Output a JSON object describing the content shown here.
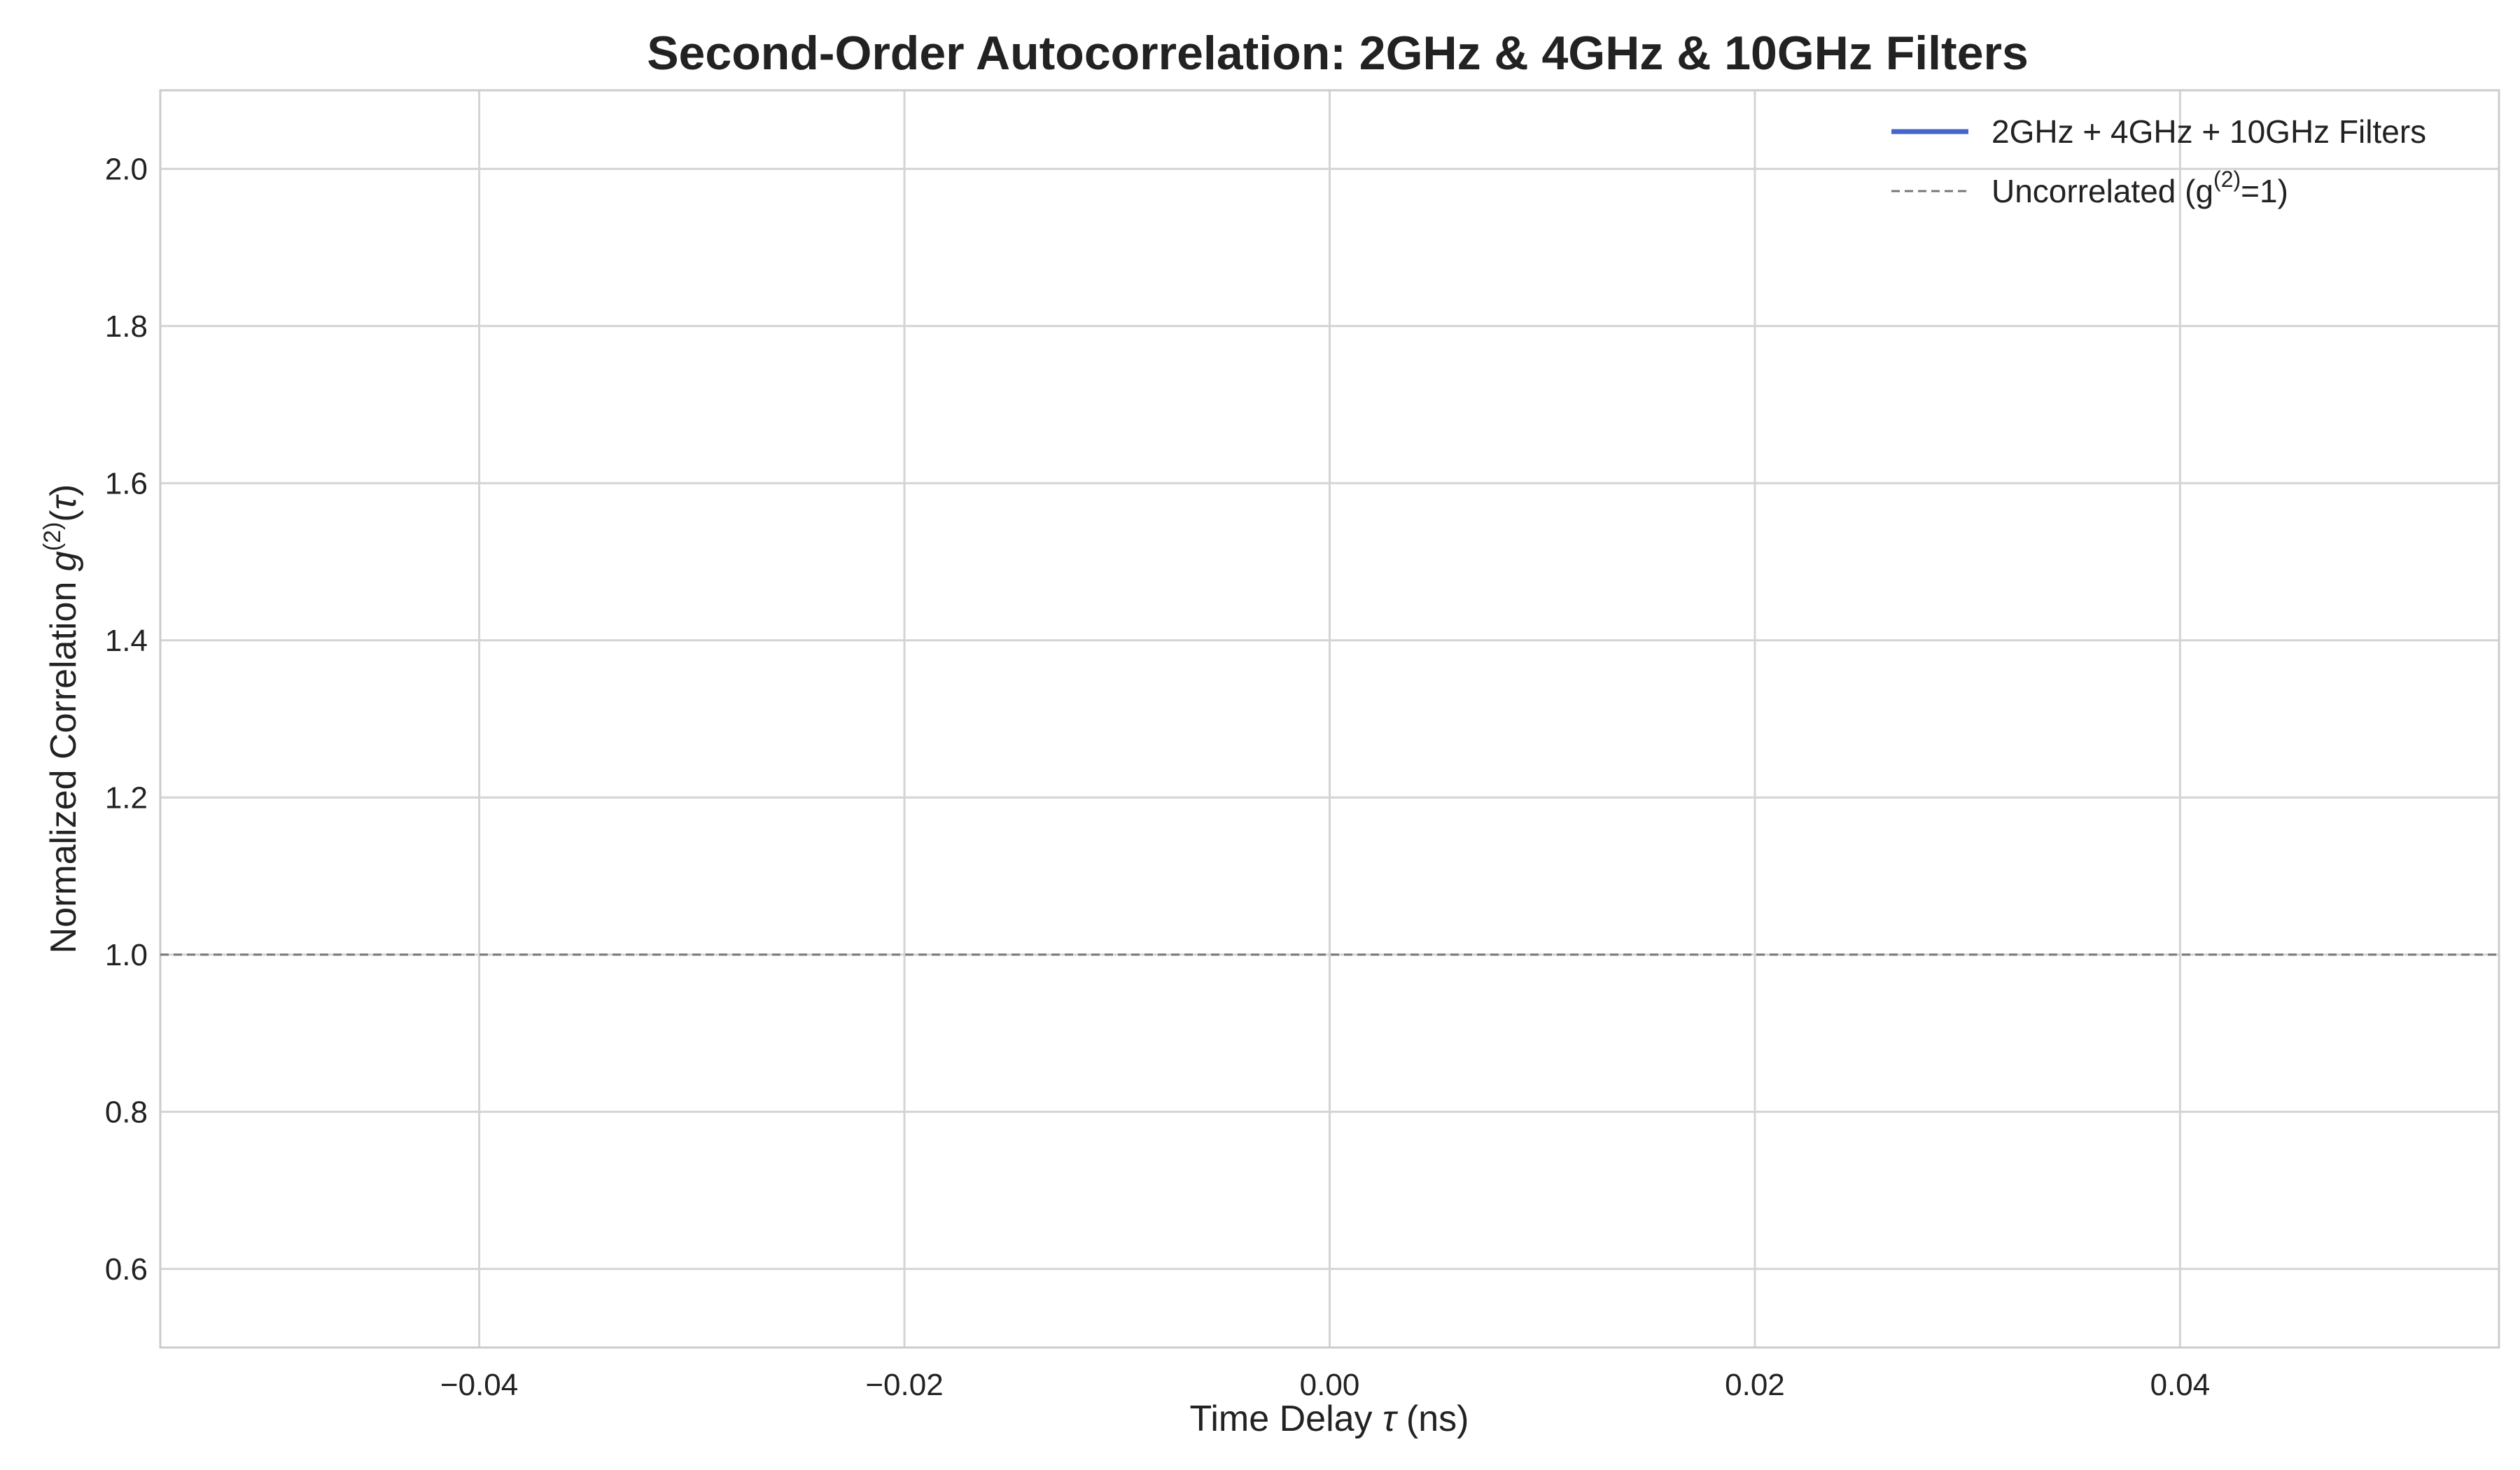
{
  "chart_data": {
    "type": "line",
    "title": "Second-Order Autocorrelation: 2GHz & 4GHz & 10GHz Filters",
    "xlabel": {
      "prefix": "Time Delay ",
      "symbol": "τ",
      "suffix": " (ns)"
    },
    "ylabel": {
      "prefix": "Normalized Correlation ",
      "symbol": "g",
      "sup": "(2)",
      "arg_open": "(",
      "arg_symbol": "τ",
      "arg_close": ")"
    },
    "xlim": [
      -0.055,
      0.055
    ],
    "ylim": [
      0.5,
      2.1
    ],
    "xticks": [
      -0.04,
      -0.02,
      0.0,
      0.02,
      0.04
    ],
    "xtick_labels": [
      "−0.04",
      "−0.02",
      "0.00",
      "0.02",
      "0.04"
    ],
    "yticks": [
      0.6,
      0.8,
      1.0,
      1.2,
      1.4,
      1.6,
      1.8,
      2.0
    ],
    "ytick_labels": [
      "0.6",
      "0.8",
      "1.0",
      "1.2",
      "1.4",
      "1.6",
      "1.8",
      "2.0"
    ],
    "grid": true,
    "legend_position": "top-right",
    "series": [
      {
        "name": "2GHz + 4GHz + 10GHz Filters",
        "color": "#4466cc",
        "style": "solid",
        "x": [],
        "y": []
      },
      {
        "name_prefix": "Uncorrelated (g",
        "name_sup": "(2)",
        "name_suffix": "=1)",
        "color": "#777777",
        "style": "dashed",
        "x": [
          -0.055,
          0.055
        ],
        "y": [
          1.0,
          1.0
        ]
      }
    ]
  }
}
